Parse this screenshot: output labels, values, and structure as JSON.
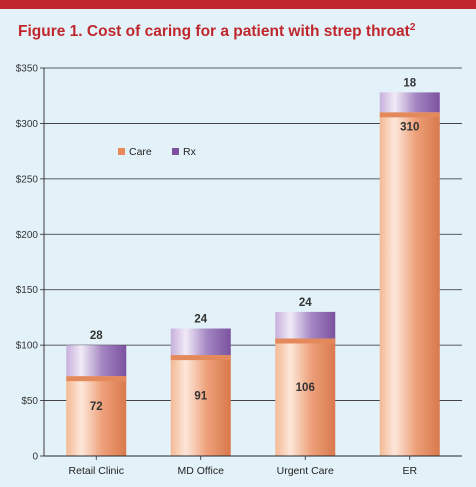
{
  "title": "Figure 1. Cost of caring for a patient with strep throat",
  "title_superscript": "2",
  "colors": {
    "accent": "#c0272d",
    "care": "#e8895a",
    "rx": "#7f4fa0",
    "background": "#e3f2f9"
  },
  "chart_data": {
    "type": "bar",
    "stacked": true,
    "categories": [
      "Retail Clinic",
      "MD Office",
      "Urgent Care",
      "ER"
    ],
    "series": [
      {
        "name": "Care",
        "values": [
          72,
          91,
          106,
          310
        ]
      },
      {
        "name": "Rx",
        "values": [
          28,
          24,
          24,
          18
        ]
      }
    ],
    "ylim": [
      0,
      350
    ],
    "yticks": [
      0,
      50,
      100,
      150,
      200,
      250,
      300,
      350
    ],
    "ytick_labels": [
      "0",
      "$50",
      "$100",
      "$150",
      "$200",
      "$250",
      "$300",
      "$350"
    ],
    "grid": true,
    "legend": "upper-left"
  }
}
